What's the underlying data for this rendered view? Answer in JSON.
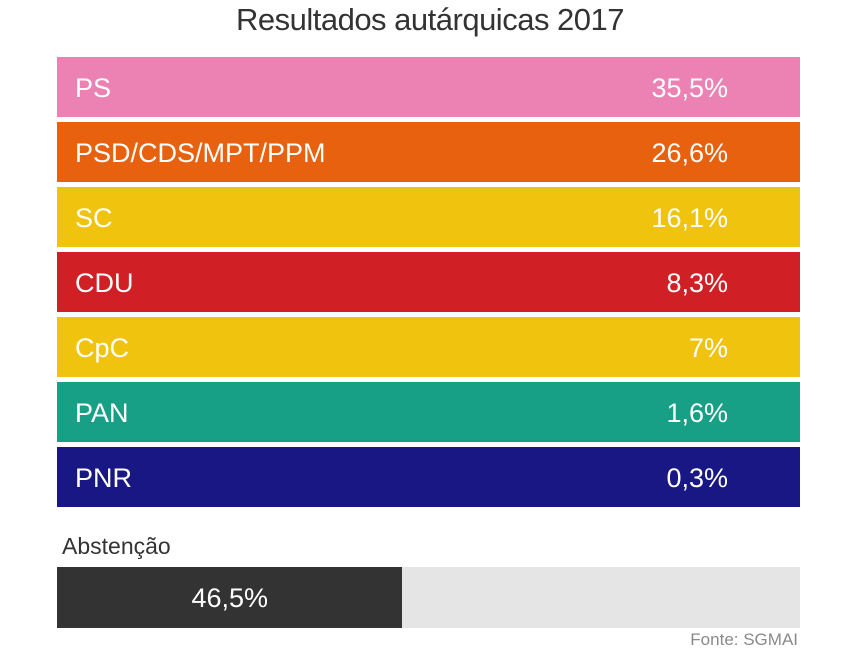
{
  "chart_data": {
    "type": "bar",
    "title": "Resultados autárquicas 2017",
    "categories": [
      "PS",
      "PSD/CDS/MPT/PPM",
      "SC",
      "CDU",
      "CpC",
      "PAN",
      "PNR"
    ],
    "values": [
      35.5,
      26.6,
      16.1,
      8.3,
      7,
      1.6,
      0.3
    ],
    "value_labels": [
      "35,5%",
      "26,6%",
      "16,1%",
      "8,3%",
      "7%",
      "1,6%",
      "0,3%"
    ],
    "colors": [
      "#ec82b4",
      "#e8610f",
      "#f0c30f",
      "#d11f26",
      "#f0c30f",
      "#17a085",
      "#181784"
    ],
    "unit": "%",
    "abstention": {
      "label": "Abstenção",
      "value": 46.5,
      "value_label": "46,5%",
      "fill_color": "#333333",
      "track_color": "#e5e5e5"
    },
    "source": "Fonte: SGMAI"
  }
}
